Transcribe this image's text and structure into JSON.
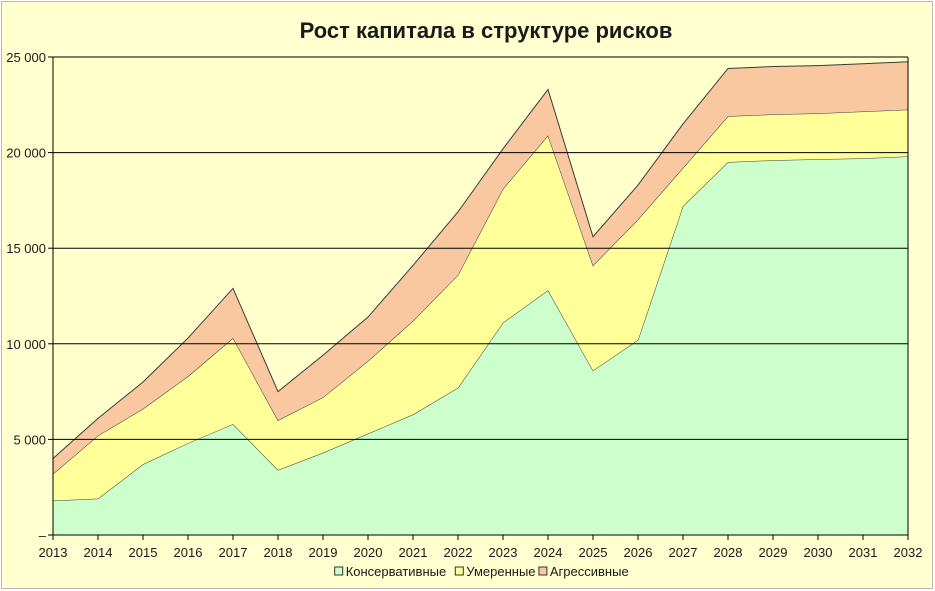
{
  "chart_data": {
    "type": "area",
    "stacked": true,
    "title": "Рост капитала в структуре рисков",
    "xlabel": "",
    "ylabel": "",
    "categories": [
      "2013",
      "2014",
      "2015",
      "2016",
      "2017",
      "2018",
      "2019",
      "2020",
      "2021",
      "2022",
      "2023",
      "2024",
      "2025",
      "2026",
      "2027",
      "2028",
      "2029",
      "2030",
      "2031",
      "2032"
    ],
    "ylim": [
      0,
      25000
    ],
    "yticks": [
      0,
      5000,
      10000,
      15000,
      20000,
      25000
    ],
    "ytick_labels": [
      "–",
      "5 000",
      "10 000",
      "15 000",
      "20 000",
      "25 000"
    ],
    "grid": true,
    "legend_position": "bottom",
    "series": [
      {
        "name": "Консервативные",
        "color": "#ccffcc",
        "values": [
          1800,
          1900,
          3700,
          4800,
          5800,
          3400,
          4300,
          5300,
          6300,
          7700,
          11100,
          12800,
          8600,
          10200,
          17200,
          19500,
          19600,
          19650,
          19700,
          19800
        ]
      },
      {
        "name": "Умеренные",
        "color": "#ffff99",
        "values": [
          1400,
          3300,
          2900,
          3500,
          4500,
          2600,
          2900,
          3800,
          4900,
          5900,
          7000,
          8100,
          5500,
          6300,
          2000,
          2400,
          2400,
          2400,
          2450,
          2450
        ]
      },
      {
        "name": "Агрессивные",
        "color": "#fac8a0",
        "values": [
          800,
          900,
          1400,
          2000,
          2600,
          1500,
          2200,
          2300,
          2900,
          3300,
          2100,
          2400,
          1500,
          1800,
          2300,
          2500,
          2500,
          2500,
          2500,
          2500
        ]
      }
    ]
  }
}
